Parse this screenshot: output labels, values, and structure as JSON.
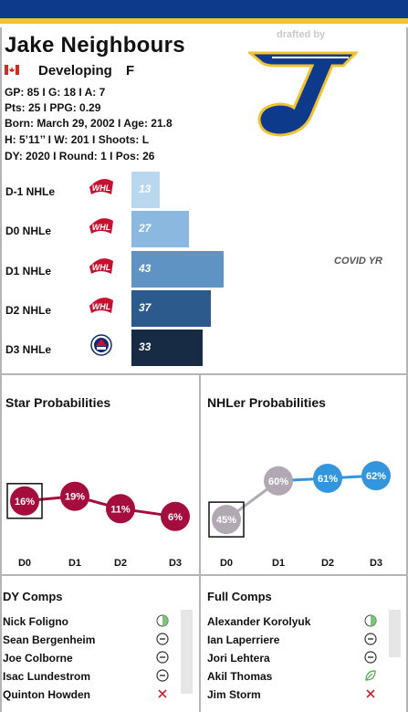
{
  "player": {
    "name": "Jake Neighbours",
    "status": "Developing",
    "position": "F",
    "line1": "GP: 85 I G: 18 I A: 7",
    "line2": "Pts: 25 I PPG: 0.29",
    "line3": "Born: March 29, 2002 I Age: 21.8",
    "line4": "H: 5’11’’ I W: 201 I Shoots: L",
    "line5": "DY: 2020 I Round: 1 I Pos: 26"
  },
  "header": {
    "drafted_by": "drafted by",
    "team_logo": "st-louis-blues-note-logo"
  },
  "colors": {
    "navy": "#0e3a8c",
    "gold": "#f1c232",
    "star": "#a50d3c",
    "nhler_high": "#3396dc",
    "nhler_low": "#b1a8b3"
  },
  "nhle": {
    "covid_note": "COVID YR",
    "rows": [
      {
        "label": "D-1 NHLe",
        "value": "13",
        "league": "whl-logo",
        "color": "#b9d8ef"
      },
      {
        "label": "D0 NHLe",
        "value": "27",
        "league": "whl-logo",
        "color": "#8ab8de"
      },
      {
        "label": "D1 NHLe",
        "value": "43",
        "league": "whl-logo",
        "color": "#5f93c3"
      },
      {
        "label": "D2 NHLe",
        "value": "37",
        "league": "whl-logo",
        "color": "#2c5a8c"
      },
      {
        "label": "D3 NHLe",
        "value": "33",
        "league": "ahl-logo",
        "color": "#172b45"
      }
    ]
  },
  "star_probabilities": {
    "title": "Star Probabilities",
    "labels": [
      "D0",
      "D1",
      "D2",
      "D3"
    ],
    "values": [
      "16%",
      "19%",
      "11%",
      "6%"
    ]
  },
  "nhler_probabilities": {
    "title": "NHLer Probabilities",
    "labels": [
      "D0",
      "D1",
      "D2",
      "D3"
    ],
    "values": [
      "45%",
      "60%",
      "61%",
      "62%"
    ]
  },
  "dy_comps": {
    "title": "DY Comps",
    "items": [
      {
        "name": "Nick Foligno",
        "icon": "half-circle-icon"
      },
      {
        "name": "Sean Bergenheim",
        "icon": "minus-circle-icon"
      },
      {
        "name": "Joe Colborne",
        "icon": "minus-circle-icon"
      },
      {
        "name": "Isac Lundestrom",
        "icon": "minus-circle-icon"
      },
      {
        "name": "Quinton Howden",
        "icon": "x-icon"
      }
    ]
  },
  "full_comps": {
    "title": "Full Comps",
    "items": [
      {
        "name": "Alexander Korolyuk",
        "icon": "half-circle-icon"
      },
      {
        "name": "Ian Laperriere",
        "icon": "minus-circle-icon"
      },
      {
        "name": "Jori Lehtera",
        "icon": "minus-circle-icon"
      },
      {
        "name": "Akil Thomas",
        "icon": "leaf-icon"
      },
      {
        "name": "Jim Storm",
        "icon": "x-icon"
      }
    ]
  }
}
